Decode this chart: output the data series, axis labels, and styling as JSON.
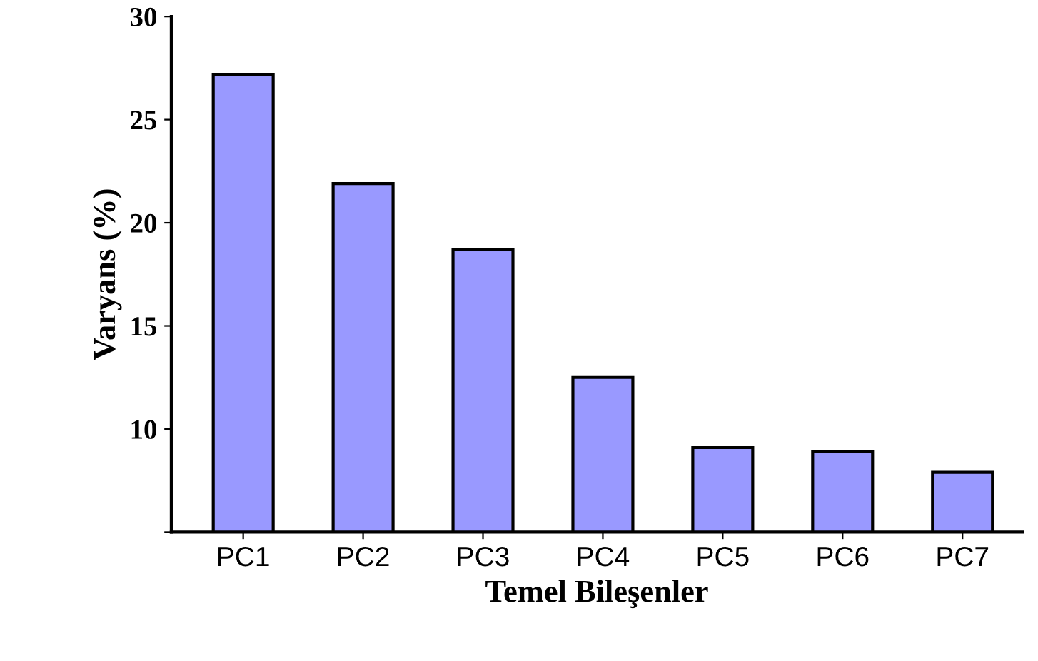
{
  "chart_data": {
    "type": "bar",
    "xlabel": "Temel Bileşenler",
    "ylabel": "Varyans (%)",
    "categories": [
      "PC1",
      "PC2",
      "PC3",
      "PC4",
      "PC5",
      "PC6",
      "PC7"
    ],
    "values": [
      27.2,
      21.9,
      18.7,
      12.5,
      9.1,
      8.9,
      7.9
    ],
    "color": "#9999ff",
    "ylim": [
      5,
      30
    ],
    "yticks": [
      {
        "value": 5,
        "label": null
      },
      10,
      15,
      20,
      25,
      30
    ],
    "grid": false
  }
}
